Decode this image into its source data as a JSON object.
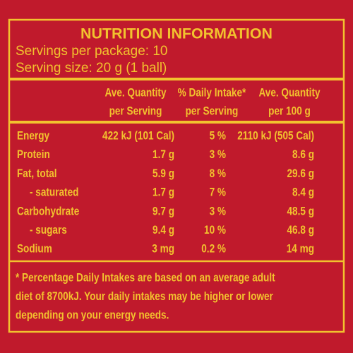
{
  "header": {
    "title": "NUTRITION INFORMATION",
    "servings_per_package": "Servings per package: 10",
    "serving_size": "Serving size: 20 g (1 ball)"
  },
  "table": {
    "columns": [
      [
        "Ave. Quantity",
        "per Serving"
      ],
      [
        "% Daily Intake*",
        "per Serving"
      ],
      [
        "Ave. Quantity",
        "per 100 g"
      ]
    ],
    "rows": [
      [
        "Energy",
        "422 kJ (101 Cal)",
        "5 %",
        "2110 kJ (505 Cal)"
      ],
      [
        "Protein",
        "1.7 g",
        "3 %",
        "8.6 g"
      ],
      [
        "Fat, total",
        "5.9 g",
        "8 %",
        "29.6 g"
      ],
      [
        "- saturated",
        "1.7 g",
        "7 %",
        "8.4 g"
      ],
      [
        "Carbohydrate",
        "9.7 g",
        "3 %",
        "48.5 g"
      ],
      [
        "- sugars",
        "9.4 g",
        "10 %",
        "46.8 g"
      ],
      [
        "Sodium",
        "3 mg",
        "0.2 %",
        "14 mg"
      ]
    ]
  },
  "footnote": [
    "* Percentage Daily Intakes are based on an average adult",
    "diet of 8700kJ. Your daily intakes may be higher or lower",
    "depending on your energy needs."
  ]
}
